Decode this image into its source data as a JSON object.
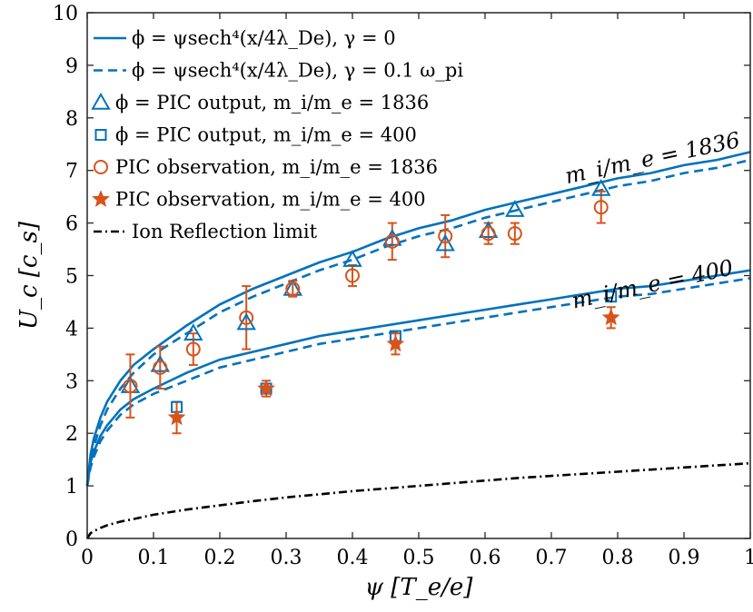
{
  "chart_data": {
    "type": "line",
    "xlabel": "ψ [T_e/e]",
    "ylabel": "U_c [c_s]",
    "xlim": [
      0,
      1
    ],
    "ylim": [
      0,
      10
    ],
    "xticks": [
      0,
      0.1,
      0.2,
      0.3,
      0.4,
      0.5,
      0.6,
      0.7,
      0.8,
      0.9,
      1
    ],
    "xtick_labels": [
      "0",
      "0.1",
      "0.2",
      "0.3",
      "0.4",
      "0.5",
      "0.6",
      "0.7",
      "0.8",
      "0.9",
      "1"
    ],
    "yticks": [
      0,
      1,
      2,
      3,
      4,
      5,
      6,
      7,
      8,
      9,
      10
    ],
    "ytick_labels": [
      "0",
      "1",
      "2",
      "3",
      "4",
      "5",
      "6",
      "7",
      "8",
      "9",
      "10"
    ],
    "grid": false,
    "legend_position": "top-left",
    "colors": {
      "blue": "#0072BD",
      "orange": "#D95319",
      "black": "#000000"
    },
    "legend": [
      {
        "label": "ϕ = ψsech⁴(x/4λ_De), γ = 0",
        "marker": "line-solid",
        "color": "#0072BD"
      },
      {
        "label": "ϕ = ψsech⁴(x/4λ_De), γ = 0.1 ω_pi",
        "marker": "line-dashed",
        "color": "#0072BD"
      },
      {
        "label": "ϕ = PIC output,  m_i/m_e = 1836",
        "marker": "triangle",
        "color": "#0072BD"
      },
      {
        "label": "ϕ = PIC output,  m_i/m_e = 400",
        "marker": "square",
        "color": "#0072BD"
      },
      {
        "label": "PIC observation,  m_i/m_e = 1836",
        "marker": "circle",
        "color": "#D95319"
      },
      {
        "label": "PIC observation,  m_i/m_e = 400",
        "marker": "star",
        "color": "#D95319"
      },
      {
        "label": "Ion Reflection limit",
        "marker": "line-dashdot",
        "color": "#000000"
      }
    ],
    "annotations": [
      {
        "text": "m_i/m_e = 1836",
        "x": 0.8,
        "y": 7.1
      },
      {
        "text": "m_i/m_e = 400",
        "x": 0.8,
        "y": 4.7
      }
    ],
    "curves": [
      {
        "style": "solid",
        "color": "#0072BD",
        "points": [
          [
            0,
            1.0
          ],
          [
            0.005,
            1.6
          ],
          [
            0.01,
            1.9
          ],
          [
            0.02,
            2.3
          ],
          [
            0.03,
            2.6
          ],
          [
            0.05,
            3.0
          ],
          [
            0.07,
            3.3
          ],
          [
            0.1,
            3.6
          ],
          [
            0.15,
            4.05
          ],
          [
            0.2,
            4.45
          ],
          [
            0.25,
            4.75
          ],
          [
            0.3,
            5.0
          ],
          [
            0.35,
            5.25
          ],
          [
            0.4,
            5.45
          ],
          [
            0.45,
            5.7
          ],
          [
            0.5,
            5.9
          ],
          [
            0.55,
            6.05
          ],
          [
            0.6,
            6.25
          ],
          [
            0.65,
            6.4
          ],
          [
            0.7,
            6.55
          ],
          [
            0.75,
            6.7
          ],
          [
            0.8,
            6.85
          ],
          [
            0.85,
            6.95
          ],
          [
            0.9,
            7.1
          ],
          [
            0.95,
            7.2
          ],
          [
            1.0,
            7.35
          ]
        ]
      },
      {
        "style": "dashed",
        "color": "#0072BD",
        "points": [
          [
            0,
            1.0
          ],
          [
            0.005,
            1.45
          ],
          [
            0.01,
            1.75
          ],
          [
            0.02,
            2.15
          ],
          [
            0.03,
            2.45
          ],
          [
            0.05,
            2.85
          ],
          [
            0.07,
            3.15
          ],
          [
            0.1,
            3.5
          ],
          [
            0.15,
            3.9
          ],
          [
            0.2,
            4.3
          ],
          [
            0.25,
            4.6
          ],
          [
            0.3,
            4.85
          ],
          [
            0.35,
            5.1
          ],
          [
            0.4,
            5.3
          ],
          [
            0.45,
            5.55
          ],
          [
            0.5,
            5.75
          ],
          [
            0.55,
            5.9
          ],
          [
            0.6,
            6.1
          ],
          [
            0.65,
            6.25
          ],
          [
            0.7,
            6.4
          ],
          [
            0.75,
            6.55
          ],
          [
            0.8,
            6.7
          ],
          [
            0.85,
            6.8
          ],
          [
            0.9,
            6.95
          ],
          [
            0.95,
            7.05
          ],
          [
            1.0,
            7.2
          ]
        ]
      },
      {
        "style": "solid",
        "color": "#0072BD",
        "points": [
          [
            0,
            1.0
          ],
          [
            0.005,
            1.45
          ],
          [
            0.01,
            1.65
          ],
          [
            0.02,
            1.95
          ],
          [
            0.03,
            2.15
          ],
          [
            0.05,
            2.45
          ],
          [
            0.07,
            2.65
          ],
          [
            0.1,
            2.85
          ],
          [
            0.15,
            3.15
          ],
          [
            0.2,
            3.4
          ],
          [
            0.25,
            3.55
          ],
          [
            0.3,
            3.7
          ],
          [
            0.35,
            3.85
          ],
          [
            0.4,
            3.95
          ],
          [
            0.45,
            4.05
          ],
          [
            0.5,
            4.15
          ],
          [
            0.55,
            4.25
          ],
          [
            0.6,
            4.35
          ],
          [
            0.65,
            4.45
          ],
          [
            0.7,
            4.55
          ],
          [
            0.75,
            4.65
          ],
          [
            0.8,
            4.75
          ],
          [
            0.85,
            4.8
          ],
          [
            0.9,
            4.9
          ],
          [
            0.95,
            5.0
          ],
          [
            1.0,
            5.1
          ]
        ]
      },
      {
        "style": "dashed",
        "color": "#0072BD",
        "points": [
          [
            0,
            1.0
          ],
          [
            0.005,
            1.35
          ],
          [
            0.01,
            1.55
          ],
          [
            0.02,
            1.85
          ],
          [
            0.03,
            2.05
          ],
          [
            0.05,
            2.35
          ],
          [
            0.07,
            2.55
          ],
          [
            0.1,
            2.75
          ],
          [
            0.15,
            3.0
          ],
          [
            0.2,
            3.25
          ],
          [
            0.25,
            3.4
          ],
          [
            0.3,
            3.55
          ],
          [
            0.35,
            3.7
          ],
          [
            0.4,
            3.8
          ],
          [
            0.45,
            3.9
          ],
          [
            0.5,
            4.0
          ],
          [
            0.55,
            4.1
          ],
          [
            0.6,
            4.2
          ],
          [
            0.65,
            4.3
          ],
          [
            0.7,
            4.4
          ],
          [
            0.75,
            4.5
          ],
          [
            0.8,
            4.6
          ],
          [
            0.85,
            4.65
          ],
          [
            0.9,
            4.75
          ],
          [
            0.95,
            4.85
          ],
          [
            1.0,
            4.95
          ]
        ]
      },
      {
        "style": "dashdot",
        "color": "#000000",
        "points": [
          [
            0,
            0
          ],
          [
            0.005,
            0.1
          ],
          [
            0.01,
            0.14
          ],
          [
            0.02,
            0.2
          ],
          [
            0.03,
            0.25
          ],
          [
            0.05,
            0.32
          ],
          [
            0.07,
            0.37
          ],
          [
            0.1,
            0.45
          ],
          [
            0.15,
            0.55
          ],
          [
            0.2,
            0.63
          ],
          [
            0.25,
            0.71
          ],
          [
            0.3,
            0.78
          ],
          [
            0.35,
            0.84
          ],
          [
            0.4,
            0.9
          ],
          [
            0.45,
            0.95
          ],
          [
            0.5,
            1.0
          ],
          [
            0.55,
            1.05
          ],
          [
            0.6,
            1.1
          ],
          [
            0.65,
            1.15
          ],
          [
            0.7,
            1.19
          ],
          [
            0.75,
            1.23
          ],
          [
            0.8,
            1.27
          ],
          [
            0.85,
            1.31
          ],
          [
            0.9,
            1.35
          ],
          [
            0.95,
            1.39
          ],
          [
            1.0,
            1.43
          ]
        ]
      }
    ],
    "triangles_1836": [
      [
        0.065,
        2.9
      ],
      [
        0.11,
        3.3
      ],
      [
        0.16,
        3.9
      ],
      [
        0.24,
        4.1
      ],
      [
        0.31,
        4.75
      ],
      [
        0.4,
        5.3
      ],
      [
        0.46,
        5.7
      ],
      [
        0.54,
        5.6
      ],
      [
        0.605,
        5.85
      ],
      [
        0.645,
        6.25
      ],
      [
        0.775,
        6.65
      ]
    ],
    "squares_400": [
      [
        0.135,
        2.5
      ],
      [
        0.27,
        2.85
      ],
      [
        0.465,
        3.85
      ],
      [
        0.79,
        4.6
      ]
    ],
    "circles_1836": [
      [
        0.065,
        2.9,
        0.6
      ],
      [
        0.11,
        3.25,
        0.4
      ],
      [
        0.16,
        3.6,
        0.3
      ],
      [
        0.24,
        4.2,
        0.6
      ],
      [
        0.31,
        4.75,
        0.15
      ],
      [
        0.4,
        5.0,
        0.2
      ],
      [
        0.46,
        5.65,
        0.35
      ],
      [
        0.54,
        5.75,
        0.4
      ],
      [
        0.605,
        5.8,
        0.2
      ],
      [
        0.645,
        5.8,
        0.2
      ],
      [
        0.775,
        6.3,
        0.3
      ]
    ],
    "stars_400": [
      [
        0.135,
        2.3,
        0.3
      ],
      [
        0.27,
        2.85,
        0.15
      ],
      [
        0.465,
        3.7,
        0.2
      ],
      [
        0.79,
        4.2,
        0.2
      ]
    ]
  }
}
